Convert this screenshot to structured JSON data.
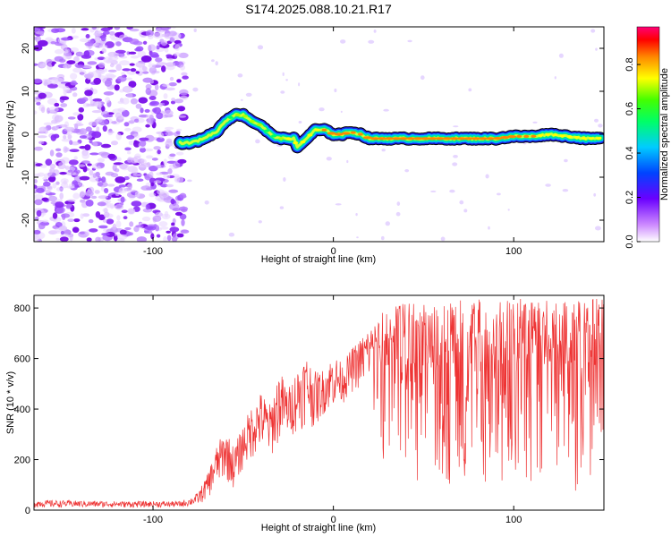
{
  "chart_data": [
    {
      "type": "heatmap",
      "title": "S174.2025.088.10.21.R17",
      "xlabel": "Height of straight line (km)",
      "ylabel": "Frequency (Hz)",
      "xlim": [
        -166,
        150
      ],
      "ylim": [
        -25,
        25
      ],
      "x_ticks": [
        -100,
        0,
        100
      ],
      "y_ticks": [
        -20,
        -10,
        0,
        10,
        20
      ],
      "colorbar": {
        "label": "Normalized spectral amplitude",
        "range": [
          0,
          0.97
        ],
        "ticks": [
          0.0,
          0.2,
          0.4,
          0.6,
          0.8
        ]
      },
      "noise_region_x": [
        -166,
        -82
      ],
      "signal_track": {
        "x": [
          -85,
          -80,
          -75,
          -70,
          -65,
          -60,
          -55,
          -50,
          -45,
          -40,
          -35,
          -30,
          -25,
          -22,
          -20,
          -15,
          -10,
          -5,
          0,
          5,
          10,
          15,
          20,
          30,
          40,
          50,
          60,
          70,
          80,
          90,
          100,
          110,
          120,
          130,
          140,
          148
        ],
        "frequency": [
          -2,
          -2,
          -1.5,
          -0.5,
          0.5,
          3,
          4.5,
          4.5,
          3,
          2,
          0,
          -1,
          -1,
          -1,
          -3,
          -1,
          1,
          1,
          0,
          0,
          0.5,
          0,
          -1,
          -1,
          -1,
          -1,
          -1,
          -1,
          -1,
          -1,
          -0.5,
          -0.5,
          0,
          -0.5,
          -1,
          -1
        ],
        "peak_amplitude": [
          0.3,
          0.35,
          0.4,
          0.45,
          0.55,
          0.6,
          0.65,
          0.7,
          0.7,
          0.65,
          0.6,
          0.7,
          0.8,
          0.85,
          0.75,
          0.8,
          0.85,
          0.9,
          0.92,
          0.92,
          0.9,
          0.9,
          0.95,
          0.95,
          0.95,
          0.95,
          0.95,
          0.95,
          0.95,
          0.95,
          0.9,
          0.9,
          0.85,
          0.85,
          0.8,
          0.8
        ]
      }
    },
    {
      "type": "line",
      "xlabel": "Height of straight line (km)",
      "ylabel": "SNR (10 * v/v)",
      "xlim": [
        -166,
        150
      ],
      "ylim": [
        0,
        850
      ],
      "x_ticks": [
        -100,
        0,
        100
      ],
      "y_ticks": [
        0,
        200,
        400,
        600,
        800
      ],
      "color": "#ee3333",
      "envelope": {
        "x": [
          -166,
          -120,
          -85,
          -80,
          -75,
          -70,
          -65,
          -60,
          -55,
          -50,
          -45,
          -40,
          -35,
          -30,
          -25,
          -20,
          -15,
          -10,
          -5,
          0,
          5,
          10,
          15,
          20,
          25,
          30,
          40,
          50,
          60,
          70,
          80,
          90,
          100,
          110,
          120,
          130,
          140,
          150
        ],
        "upper": [
          40,
          35,
          35,
          45,
          70,
          140,
          250,
          320,
          250,
          340,
          420,
          470,
          420,
          560,
          480,
          570,
          620,
          550,
          560,
          620,
          580,
          640,
          680,
          740,
          770,
          800,
          820,
          830,
          810,
          830,
          840,
          820,
          840,
          860,
          830,
          840,
          830,
          840
        ],
        "lower": [
          10,
          10,
          10,
          15,
          20,
          40,
          90,
          120,
          80,
          160,
          200,
          230,
          200,
          260,
          290,
          300,
          340,
          320,
          380,
          400,
          420,
          460,
          480,
          500,
          250,
          100,
          120,
          80,
          100,
          80,
          120,
          90,
          80,
          100,
          60,
          80,
          60,
          80
        ]
      }
    }
  ]
}
